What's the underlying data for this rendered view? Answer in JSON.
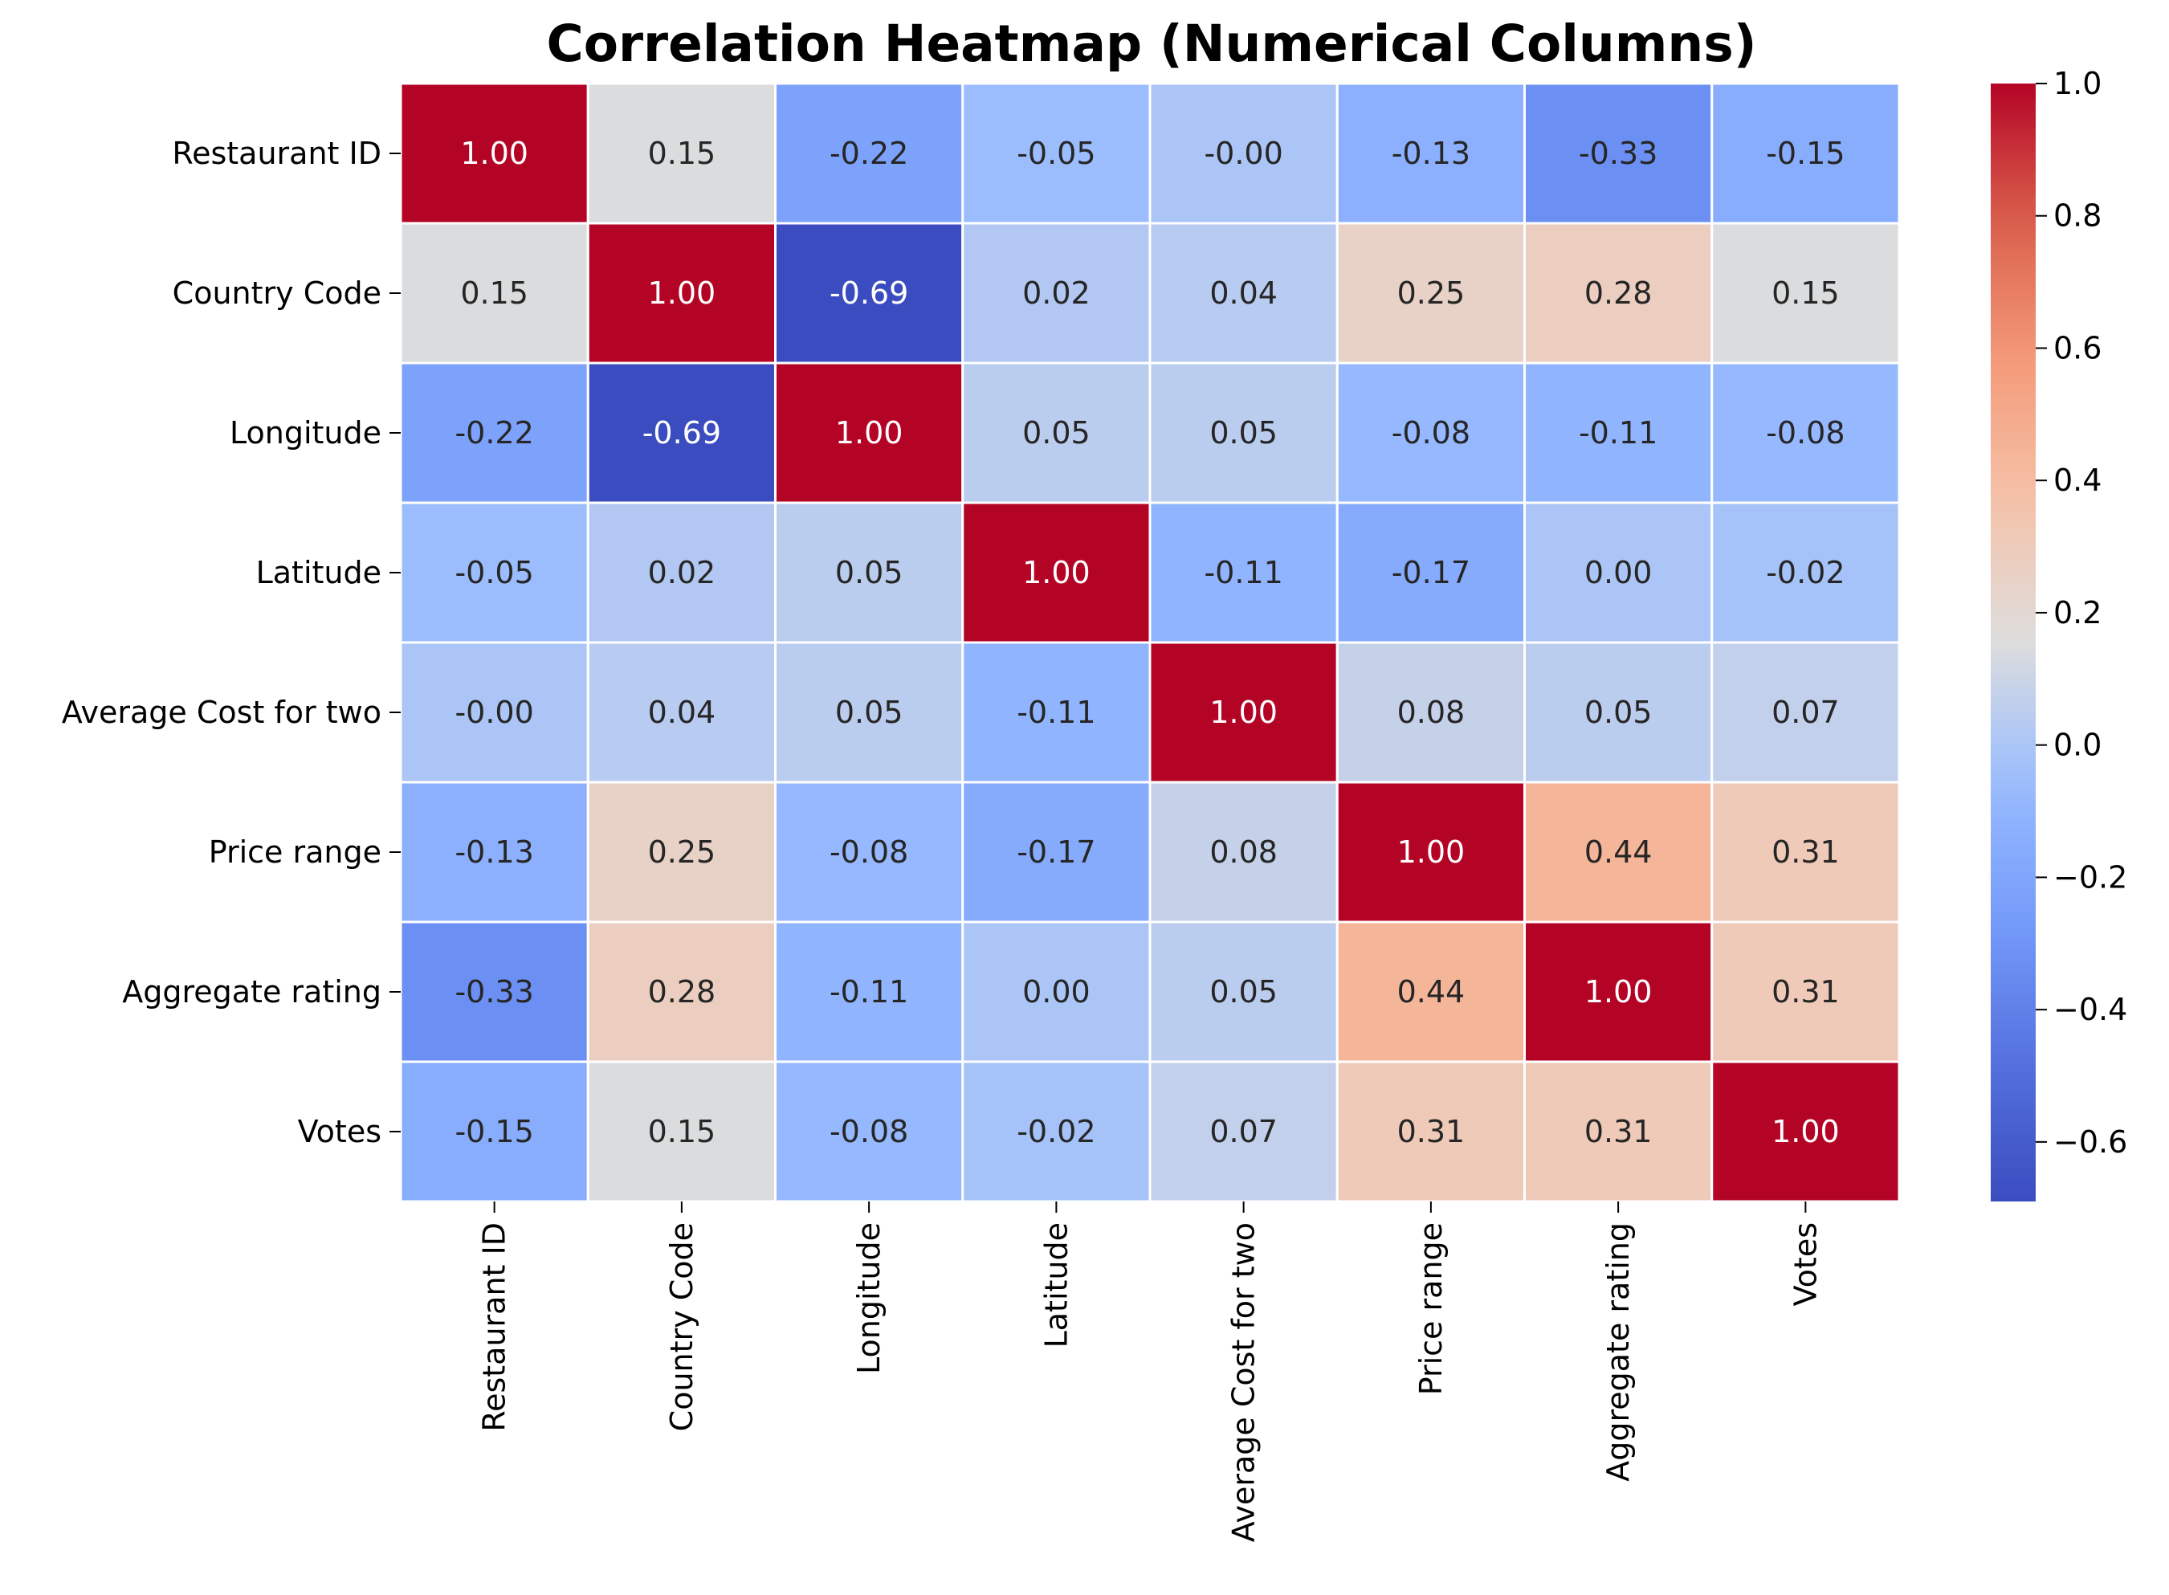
{
  "chart_data": {
    "type": "heatmap",
    "title": "Correlation Heatmap (Numerical Columns)",
    "xlabel": "",
    "ylabel": "",
    "x_categories": [
      "Restaurant ID",
      "Country Code",
      "Longitude",
      "Latitude",
      "Average Cost for two",
      "Price range",
      "Aggregate rating",
      "Votes"
    ],
    "y_categories": [
      "Restaurant ID",
      "Country Code",
      "Longitude",
      "Latitude",
      "Average Cost for two",
      "Price range",
      "Aggregate rating",
      "Votes"
    ],
    "values": [
      [
        1.0,
        0.15,
        -0.22,
        -0.05,
        -0.0,
        -0.13,
        -0.33,
        -0.15
      ],
      [
        0.15,
        1.0,
        -0.69,
        0.02,
        0.04,
        0.25,
        0.28,
        0.15
      ],
      [
        -0.22,
        -0.69,
        1.0,
        0.05,
        0.05,
        -0.08,
        -0.11,
        -0.08
      ],
      [
        -0.05,
        0.02,
        0.05,
        1.0,
        -0.11,
        -0.17,
        0.0,
        -0.02
      ],
      [
        -0.0,
        0.04,
        0.05,
        -0.11,
        1.0,
        0.08,
        0.05,
        0.07
      ],
      [
        -0.13,
        0.25,
        -0.08,
        -0.17,
        0.08,
        1.0,
        0.44,
        0.31
      ],
      [
        -0.33,
        0.28,
        -0.11,
        0.0,
        0.05,
        0.44,
        1.0,
        0.31
      ],
      [
        -0.15,
        0.15,
        -0.08,
        -0.02,
        0.07,
        0.31,
        0.31,
        1.0
      ]
    ],
    "annotation_format": "0.00",
    "colormap": "coolwarm",
    "colorbar": {
      "vmin": -0.69,
      "vmax": 1.0,
      "ticks": [
        -0.6,
        -0.4,
        -0.2,
        0.0,
        0.2,
        0.4,
        0.6,
        0.8,
        1.0
      ],
      "tick_labels": [
        "−0.6",
        "−0.4",
        "−0.2",
        "0.0",
        "0.2",
        "0.4",
        "0.6",
        "0.8",
        "1.0"
      ],
      "placement": "right"
    },
    "grid": true,
    "grid_color": "#ffffff"
  }
}
